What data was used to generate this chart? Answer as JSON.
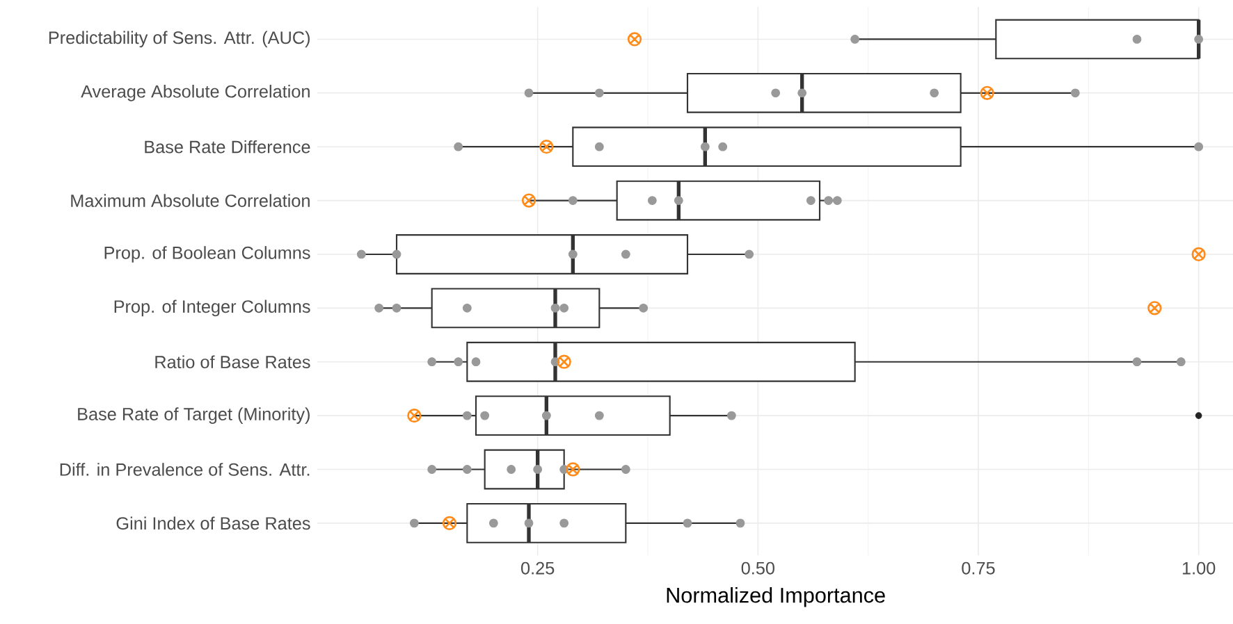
{
  "chart_data": {
    "type": "box",
    "orientation": "horizontal",
    "xlabel": "Normalized Importance",
    "grid": true,
    "color": "#333333",
    "categories": [
      "Predictability of Sens. Attr. (AUC)",
      "Average Absolute Correlation",
      "Base Rate Difference",
      "Maximum Absolute Correlation",
      "Prop. of Boolean Columns",
      "Prop. of Integer Columns",
      "Ratio of Base Rates",
      "Base Rate of Target (Minority)",
      "Diff. in Prevalence of Sens. Attr.",
      "Gini Index of Base Rates"
    ],
    "xlim": [
      0,
      1.04
    ],
    "xticks": [
      0.25,
      {
        "value": 0.5,
        "label": "0.50"
      },
      0.75,
      {
        "value": 1.0,
        "label": "1.00"
      }
    ],
    "boxes": [
      {
        "low": 0.61,
        "q1": 0.77,
        "median": 1.0,
        "q3": 1.0,
        "high": 1.0
      },
      {
        "low": 0.24,
        "q1": 0.42,
        "median": 0.55,
        "q3": 0.73,
        "high": 0.86
      },
      {
        "low": 0.16,
        "q1": 0.29,
        "median": 0.44,
        "q3": 0.73,
        "high": 1.0
      },
      {
        "low": 0.24,
        "q1": 0.34,
        "median": 0.41,
        "q3": 0.57,
        "high": 0.59
      },
      {
        "low": 0.05,
        "q1": 0.09,
        "median": 0.29,
        "q3": 0.42,
        "high": 0.49
      },
      {
        "low": 0.07,
        "q1": 0.13,
        "median": 0.27,
        "q3": 0.32,
        "high": 0.37
      },
      {
        "low": 0.13,
        "q1": 0.17,
        "median": 0.27,
        "q3": 0.61,
        "high": 0.98
      },
      {
        "low": 0.11,
        "q1": 0.18,
        "median": 0.26,
        "q3": 0.4,
        "high": 0.47,
        "outliers": [
          1.0
        ]
      },
      {
        "low": 0.13,
        "q1": 0.19,
        "median": 0.25,
        "q3": 0.28,
        "high": 0.35
      },
      {
        "low": 0.11,
        "q1": 0.17,
        "median": 0.24,
        "q3": 0.35,
        "high": 0.48
      }
    ],
    "series": [
      {
        "type": "scatter",
        "color": "#999999",
        "marker": "circle",
        "x": [
          "Predictability of Sens. Attr. (AUC)",
          "Predictability of Sens. Attr. (AUC)",
          "Predictability of Sens. Attr. (AUC)",
          "Average Absolute Correlation",
          "Average Absolute Correlation",
          "Average Absolute Correlation",
          "Average Absolute Correlation",
          "Average Absolute Correlation",
          "Average Absolute Correlation",
          "Base Rate Difference",
          "Base Rate Difference",
          "Base Rate Difference",
          "Base Rate Difference",
          "Base Rate Difference",
          "Maximum Absolute Correlation",
          "Maximum Absolute Correlation",
          "Maximum Absolute Correlation",
          "Maximum Absolute Correlation",
          "Maximum Absolute Correlation",
          "Maximum Absolute Correlation",
          "Prop. of Boolean Columns",
          "Prop. of Boolean Columns",
          "Prop. of Boolean Columns",
          "Prop. of Boolean Columns",
          "Prop. of Boolean Columns",
          "Prop. of Integer Columns",
          "Prop. of Integer Columns",
          "Prop. of Integer Columns",
          "Prop. of Integer Columns",
          "Prop. of Integer Columns",
          "Prop. of Integer Columns",
          "Ratio of Base Rates",
          "Ratio of Base Rates",
          "Ratio of Base Rates",
          "Ratio of Base Rates",
          "Ratio of Base Rates",
          "Ratio of Base Rates",
          "Base Rate of Target (Minority)",
          "Base Rate of Target (Minority)",
          "Base Rate of Target (Minority)",
          "Base Rate of Target (Minority)",
          "Base Rate of Target (Minority)",
          "Diff. in Prevalence of Sens. Attr.",
          "Diff. in Prevalence of Sens. Attr.",
          "Diff. in Prevalence of Sens. Attr.",
          "Diff. in Prevalence of Sens. Attr.",
          "Diff. in Prevalence of Sens. Attr.",
          "Diff. in Prevalence of Sens. Attr.",
          "Gini Index of Base Rates",
          "Gini Index of Base Rates",
          "Gini Index of Base Rates",
          "Gini Index of Base Rates",
          "Gini Index of Base Rates",
          "Gini Index of Base Rates"
        ],
        "values": [
          0.61,
          0.93,
          1.0,
          0.24,
          0.32,
          0.52,
          0.55,
          0.7,
          0.86,
          0.16,
          0.32,
          0.44,
          0.46,
          1.0,
          0.29,
          0.38,
          0.41,
          0.56,
          0.58,
          0.59,
          0.05,
          0.09,
          0.29,
          0.35,
          0.49,
          0.07,
          0.09,
          0.17,
          0.27,
          0.28,
          0.37,
          0.13,
          0.16,
          0.18,
          0.27,
          0.93,
          0.98,
          0.17,
          0.19,
          0.26,
          0.32,
          0.47,
          0.13,
          0.17,
          0.22,
          0.25,
          0.28,
          0.35,
          0.11,
          0.2,
          0.24,
          0.28,
          0.42,
          0.48
        ]
      },
      {
        "type": "scatter",
        "color": "#ff8c1a",
        "marker": "cross",
        "x": [
          "Predictability of Sens. Attr. (AUC)",
          "Average Absolute Correlation",
          "Base Rate Difference",
          "Maximum Absolute Correlation",
          "Prop. of Boolean Columns",
          "Prop. of Integer Columns",
          "Ratio of Base Rates",
          "Base Rate of Target (Minority)",
          "Diff. in Prevalence of Sens. Attr.",
          "Gini Index of Base Rates"
        ],
        "values": [
          0.36,
          0.76,
          0.26,
          0.24,
          1.0,
          0.95,
          0.28,
          0.11,
          0.29,
          0.15
        ]
      }
    ]
  }
}
